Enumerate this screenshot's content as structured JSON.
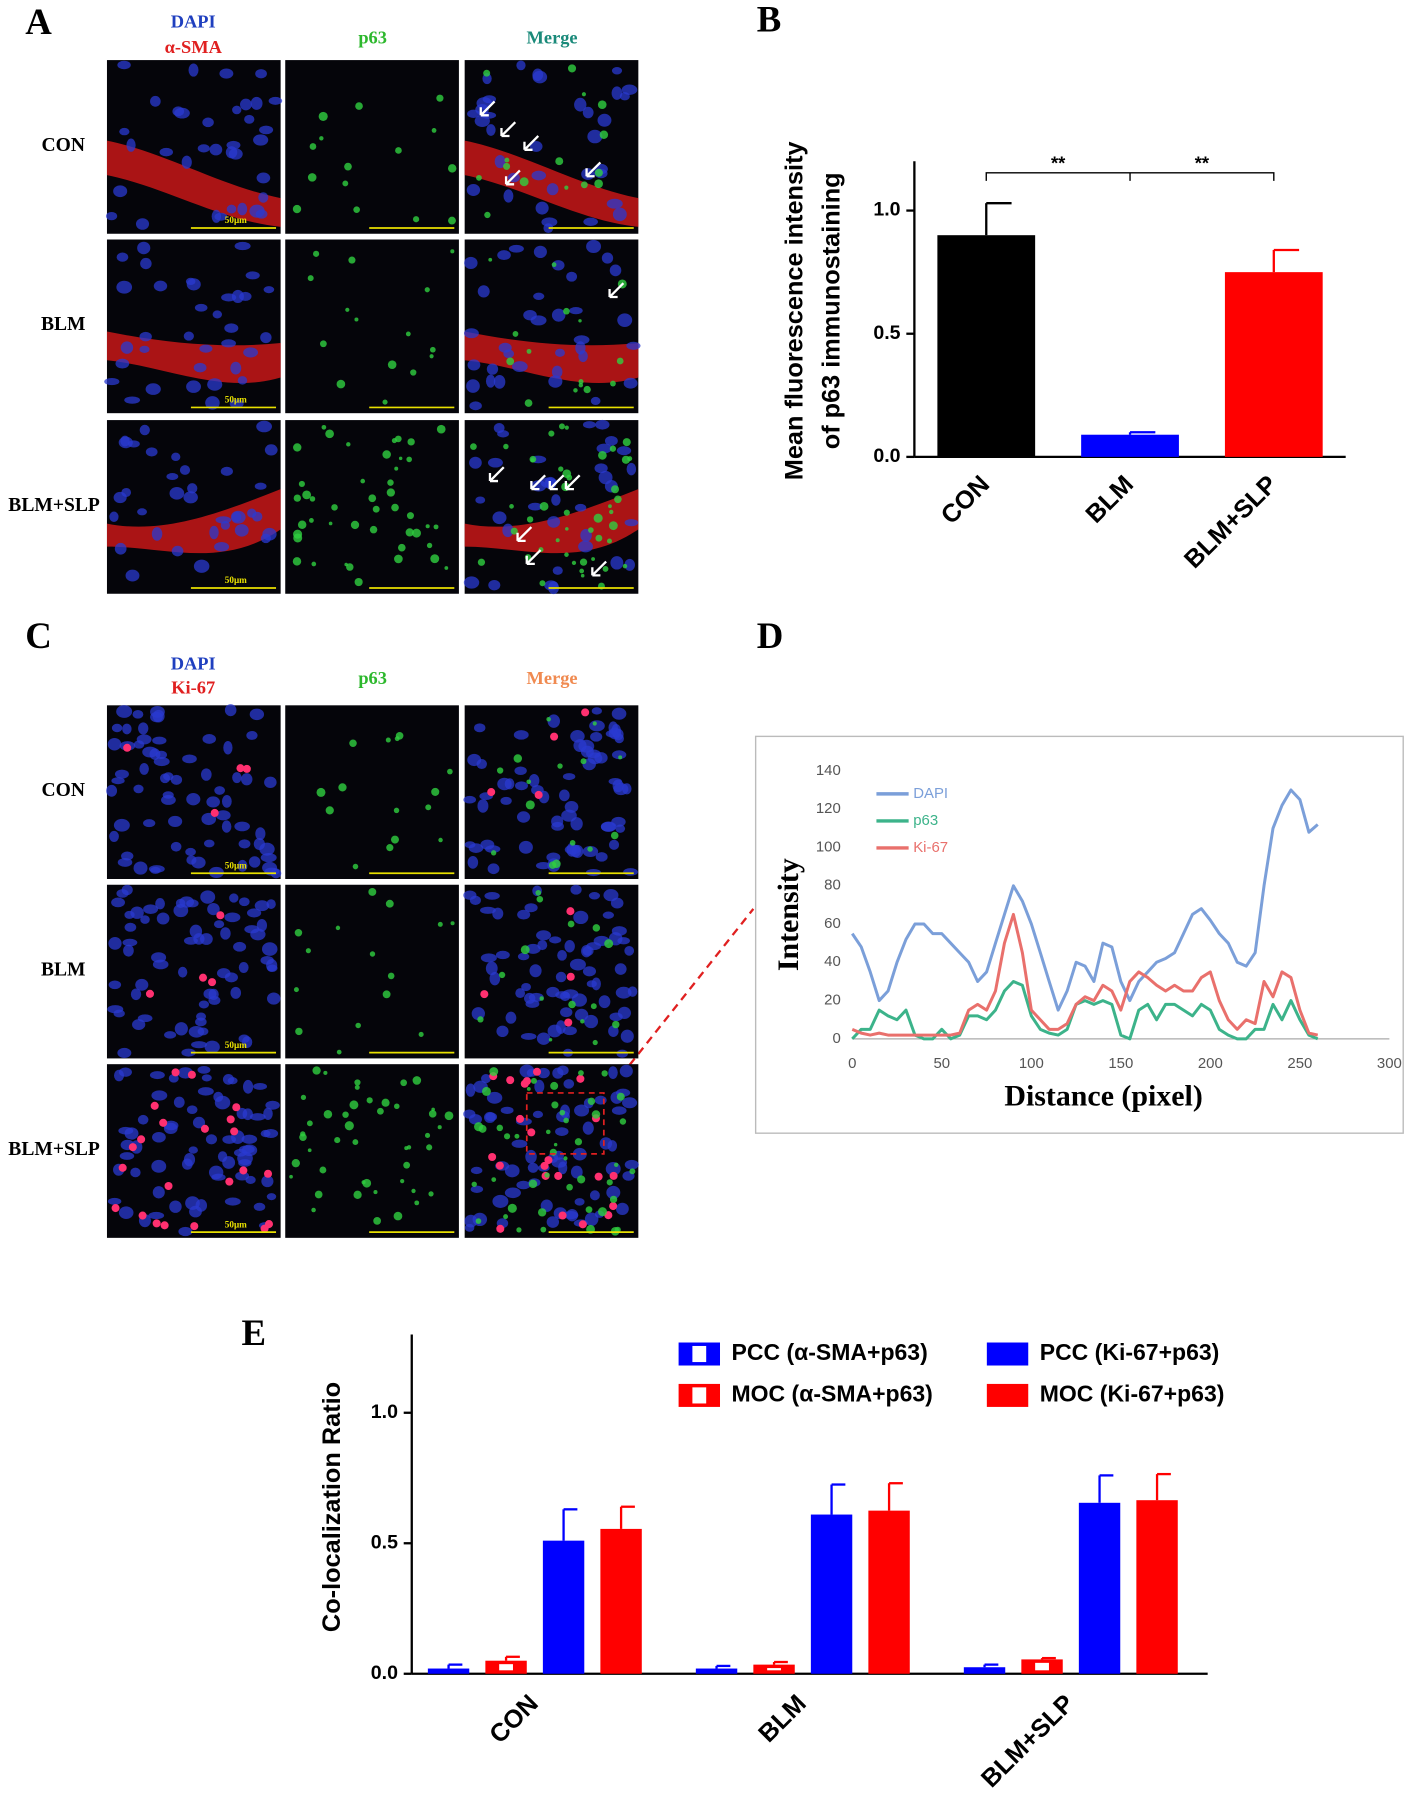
{
  "panel_labels": [
    "A",
    "B",
    "C",
    "D",
    "E"
  ],
  "panel_a": {
    "headers": [
      "DAPI",
      "α-SMA",
      "p63",
      "Merge"
    ],
    "rows": [
      "CON",
      "BLM",
      "BLM+SLP"
    ],
    "scale_bar": "50μm"
  },
  "panel_c": {
    "headers": [
      "DAPI",
      "Ki-67",
      "p63",
      "Merge"
    ],
    "rows": [
      "CON",
      "BLM",
      "BLM+SLP"
    ],
    "scale_bar": "50μm"
  },
  "chart_data": [
    {
      "type": "bar",
      "ylabel": [
        "Mean fluorescence intensity",
        "of p63 immunostaining"
      ],
      "categories": [
        "CON",
        "BLM",
        "BLM+SLP"
      ],
      "values": [
        0.9,
        0.09,
        0.75
      ],
      "errors": [
        0.13,
        0.01,
        0.09
      ],
      "colors": [
        "#000000",
        "#0000ff",
        "#ff0000"
      ],
      "ylim": [
        0,
        1.2
      ],
      "yticks": [
        {
          "value": 0,
          "label": "0.0"
        },
        0.5,
        {
          "value": 1,
          "label": "1.0"
        }
      ],
      "significance": [
        "**",
        "**"
      ]
    },
    {
      "type": "line",
      "xlabel": "Distance (pixel)",
      "ylabel": "Intensity",
      "x": [
        0,
        5,
        10,
        15,
        20,
        25,
        30,
        35,
        40,
        45,
        50,
        55,
        60,
        65,
        70,
        75,
        80,
        85,
        90,
        95,
        100,
        105,
        110,
        115,
        120,
        125,
        130,
        135,
        140,
        145,
        150,
        155,
        160,
        165,
        170,
        175,
        180,
        185,
        190,
        195,
        200,
        205,
        210,
        215,
        220,
        225,
        230,
        235,
        240,
        245,
        250,
        255,
        260
      ],
      "series": [
        {
          "name": "DAPI",
          "color": "#7b9fd9",
          "values": [
            55,
            48,
            35,
            20,
            25,
            40,
            52,
            60,
            60,
            55,
            55,
            50,
            45,
            40,
            30,
            35,
            50,
            65,
            80,
            72,
            60,
            45,
            30,
            15,
            25,
            40,
            38,
            30,
            50,
            48,
            30,
            20,
            30,
            35,
            40,
            42,
            45,
            55,
            65,
            68,
            62,
            55,
            50,
            40,
            38,
            45,
            80,
            110,
            122,
            130,
            125,
            108,
            112
          ]
        },
        {
          "name": "p63",
          "color": "#3cb38a",
          "values": [
            0,
            5,
            5,
            15,
            12,
            10,
            15,
            2,
            0,
            0,
            5,
            0,
            2,
            12,
            12,
            10,
            15,
            25,
            30,
            28,
            12,
            5,
            3,
            2,
            5,
            18,
            20,
            18,
            20,
            18,
            2,
            0,
            15,
            18,
            10,
            18,
            18,
            15,
            12,
            18,
            15,
            5,
            2,
            0,
            0,
            5,
            5,
            18,
            10,
            20,
            10,
            2,
            0
          ]
        },
        {
          "name": "Ki-67",
          "color": "#e9706c",
          "values": [
            5,
            3,
            2,
            3,
            2,
            2,
            2,
            2,
            2,
            2,
            2,
            2,
            3,
            15,
            18,
            15,
            25,
            50,
            65,
            45,
            15,
            10,
            5,
            5,
            8,
            18,
            22,
            20,
            28,
            25,
            15,
            30,
            35,
            32,
            28,
            25,
            28,
            25,
            25,
            32,
            35,
            20,
            10,
            5,
            10,
            8,
            30,
            22,
            35,
            32,
            15,
            3,
            2
          ]
        }
      ],
      "xlim": [
        0,
        300
      ],
      "xticks": [
        0,
        50,
        100,
        150,
        200,
        250,
        300
      ],
      "ylim": [
        0,
        140
      ],
      "yticks": [
        0,
        20,
        40,
        60,
        80,
        100,
        120,
        140
      ],
      "grid": false
    },
    {
      "type": "grouped_bar",
      "ylabel": "Co-localization Ratio",
      "categories": [
        "CON",
        "BLM",
        "BLM+SLP"
      ],
      "series": [
        {
          "name": "PCC (α-SMA+p63)",
          "color": "#0000ff",
          "fill": "open",
          "values": [
            0.02,
            0.02,
            0.025
          ],
          "errors": [
            0.015,
            0.01,
            0.01
          ]
        },
        {
          "name": "MOC (α-SMA+p63)",
          "color": "#ff0000",
          "fill": "open",
          "values": [
            0.05,
            0.035,
            0.055
          ],
          "errors": [
            0.015,
            0.01,
            0.005
          ]
        },
        {
          "name": "PCC (Ki-67+p63)",
          "color": "#0000ff",
          "fill": "solid",
          "values": [
            0.51,
            0.61,
            0.655
          ],
          "errors": [
            0.12,
            0.115,
            0.105
          ]
        },
        {
          "name": "MOC (Ki-67+p63)",
          "color": "#ff0000",
          "fill": "solid",
          "values": [
            0.555,
            0.625,
            0.665
          ],
          "errors": [
            0.085,
            0.105,
            0.1
          ]
        }
      ],
      "ylim": [
        0,
        1.3
      ],
      "yticks": [
        {
          "value": 0,
          "label": "0.0"
        },
        0.5,
        {
          "value": 1,
          "label": "1.0"
        }
      ]
    }
  ]
}
